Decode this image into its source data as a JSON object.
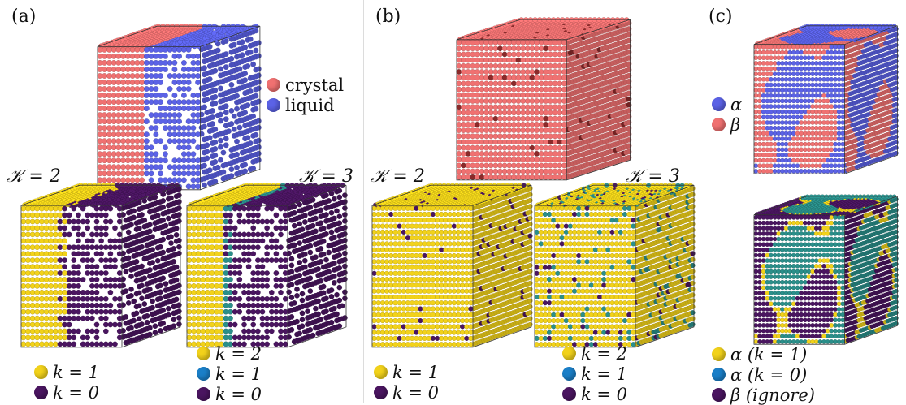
{
  "colors": {
    "crystal": "#f07171",
    "liquid": "#5b62e6",
    "alpha": "#5b62e6",
    "beta": "#f07171",
    "yellow": "#f2d21a",
    "teal": "#2a8f8a",
    "purple": "#4a1560",
    "blue_dot": "#1a7fc8"
  },
  "panels": {
    "a": {
      "label": "(a)",
      "legend": [
        {
          "text": "crystal",
          "color_key": "crystal"
        },
        {
          "text": "liquid",
          "color_key": "liquid"
        }
      ],
      "k2": {
        "label": "𝒦 = 2",
        "legend": [
          {
            "text": "k = 1",
            "color_key": "yellow"
          },
          {
            "text": "k = 0",
            "color_key": "purple"
          }
        ]
      },
      "k3": {
        "label": "𝒦 = 3",
        "legend": [
          {
            "text": "k = 2",
            "color_key": "yellow"
          },
          {
            "text": "k = 1",
            "color_key": "blue_dot"
          },
          {
            "text": "k = 0",
            "color_key": "purple"
          }
        ]
      }
    },
    "b": {
      "label": "(b)",
      "k2": {
        "label": "𝒦 = 2",
        "legend": [
          {
            "text": "k = 1",
            "color_key": "yellow"
          },
          {
            "text": "k = 0",
            "color_key": "purple"
          }
        ]
      },
      "k3": {
        "label": "𝒦 = 3",
        "legend": [
          {
            "text": "k = 2",
            "color_key": "yellow"
          },
          {
            "text": "k = 1",
            "color_key": "blue_dot"
          },
          {
            "text": "k = 0",
            "color_key": "purple"
          }
        ]
      }
    },
    "c": {
      "label": "(c)",
      "legend_top": [
        {
          "text": "α",
          "color_key": "alpha"
        },
        {
          "text": "β",
          "color_key": "beta"
        }
      ],
      "legend_bottom": [
        {
          "text": "α (k = 1)",
          "color_key": "yellow"
        },
        {
          "text": "α (k = 0)",
          "color_key": "blue_dot"
        },
        {
          "text": "β (ignore)",
          "color_key": "purple"
        }
      ]
    }
  }
}
